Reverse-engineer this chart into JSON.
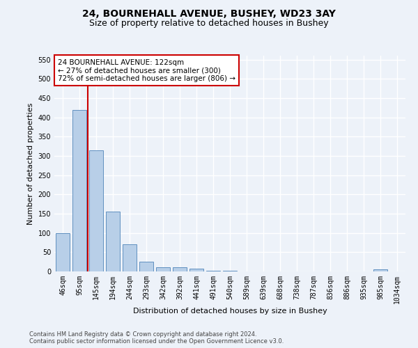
{
  "title1": "24, BOURNEHALL AVENUE, BUSHEY, WD23 3AY",
  "title2": "Size of property relative to detached houses in Bushey",
  "xlabel": "Distribution of detached houses by size in Bushey",
  "ylabel": "Number of detached properties",
  "bar_color": "#b8cfe8",
  "bar_edge_color": "#6090c0",
  "background_color": "#edf2f9",
  "grid_color": "#ffffff",
  "vline_color": "#cc0000",
  "vline_x": 1.5,
  "annotation_text": "24 BOURNEHALL AVENUE: 122sqm\n← 27% of detached houses are smaller (300)\n72% of semi-detached houses are larger (806) →",
  "bins": [
    "46sqm",
    "95sqm",
    "145sqm",
    "194sqm",
    "244sqm",
    "293sqm",
    "342sqm",
    "392sqm",
    "441sqm",
    "491sqm",
    "540sqm",
    "589sqm",
    "639sqm",
    "688sqm",
    "738sqm",
    "787sqm",
    "836sqm",
    "886sqm",
    "935sqm",
    "985sqm",
    "1034sqm"
  ],
  "values": [
    100,
    420,
    315,
    155,
    70,
    25,
    10,
    10,
    7,
    2,
    2,
    0,
    0,
    0,
    0,
    0,
    0,
    0,
    0,
    5,
    0
  ],
  "ylim": [
    0,
    560
  ],
  "yticks": [
    0,
    50,
    100,
    150,
    200,
    250,
    300,
    350,
    400,
    450,
    500,
    550
  ],
  "footer": "Contains HM Land Registry data © Crown copyright and database right 2024.\nContains public sector information licensed under the Open Government Licence v3.0.",
  "title1_fontsize": 10,
  "title2_fontsize": 9,
  "tick_fontsize": 7,
  "ylabel_fontsize": 8,
  "xlabel_fontsize": 8,
  "annotation_fontsize": 7.5
}
